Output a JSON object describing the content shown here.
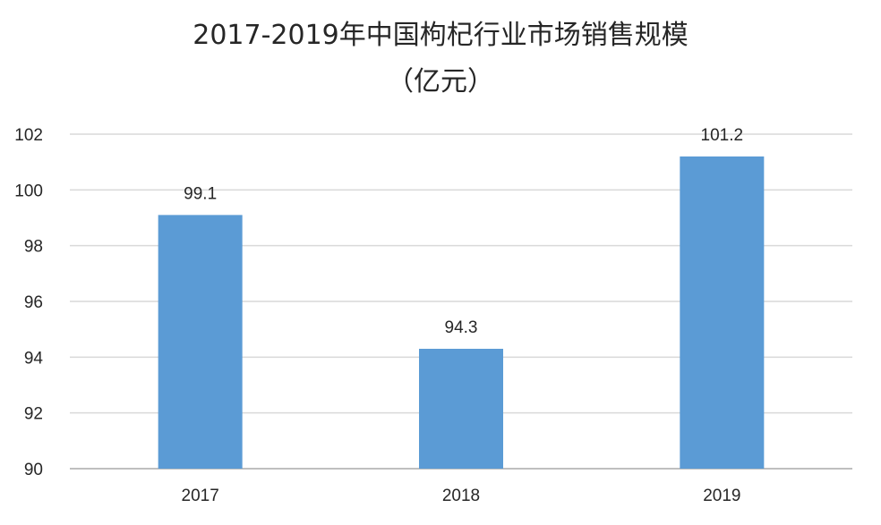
{
  "chart_data": {
    "type": "bar",
    "title": "2017-2019年中国枸杞行业市场销售规模",
    "subtitle": "（亿元）",
    "categories": [
      "2017",
      "2018",
      "2019"
    ],
    "values": [
      99.1,
      94.3,
      101.2
    ],
    "data_labels": [
      "99.1",
      "94.3",
      "101.2"
    ],
    "xlabel": "",
    "ylabel": "",
    "ylim": [
      90,
      102
    ],
    "yticks": [
      90,
      92,
      94,
      96,
      98,
      100,
      102
    ],
    "grid": true,
    "legend": "none",
    "bar_color": "#5B9BD5",
    "grid_color": "#D9D9D9",
    "axis_color": "#BFBFBF",
    "text_color": "#262626"
  }
}
